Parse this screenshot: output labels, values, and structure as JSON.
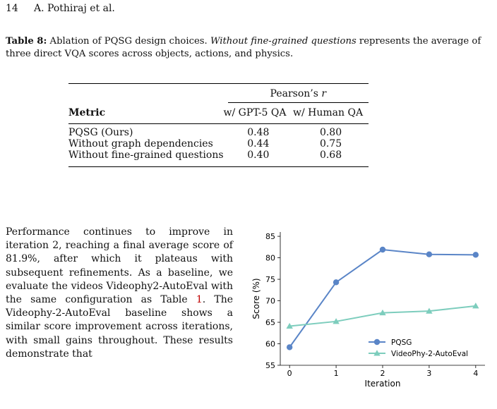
{
  "header": {
    "page_number": "14",
    "authors": "A. Pothiraj et al."
  },
  "caption": {
    "label": "Table 8:",
    "text_a": " Ablation of PQSG design choices. ",
    "italic": "Without fine-grained questions",
    "text_b": " represents the average of three direct VQA scores across objects, actions, and physics."
  },
  "table": {
    "group_header": "Pearson’s r",
    "metric_header": "Metric",
    "col1_header": "w/ GPT-5 QA",
    "col2_header": "w/ Human QA",
    "rows": [
      {
        "metric": "PQSG (Ours)",
        "gpt5": "0.48",
        "human": "0.80"
      },
      {
        "metric": "Without graph dependencies",
        "gpt5": "0.44",
        "human": "0.75"
      },
      {
        "metric": "Without fine-grained questions",
        "gpt5": "0.40",
        "human": "0.68"
      }
    ]
  },
  "paragraph": {
    "text_a": "Performance continues to improve in iteration 2, reaching a final average score of 81.9%, after which it plateaus with subsequent refinements. As a baseline, we evaluate the videos Videophy2-AutoEval with the same configuration as Table ",
    "ref": "1",
    "text_b": ". The Videophy-2-AutoEval baseline shows a similar score improvement across iterations, with small gains throughout. These results demonstrate that"
  },
  "chart_data": {
    "type": "line",
    "xlabel": "Iteration",
    "ylabel": "Score (%)",
    "x": [
      0,
      1,
      2,
      3,
      4
    ],
    "ylim": [
      55,
      86
    ],
    "yticks": [
      55,
      60,
      65,
      70,
      75,
      80,
      85
    ],
    "grid": false,
    "legend_position": "lower-right",
    "series": [
      {
        "name": "PQSG",
        "values": [
          59.2,
          74.3,
          81.9,
          80.8,
          80.7
        ],
        "color": "#5a85c7",
        "marker": "circle"
      },
      {
        "name": "VideoPhy-2-AutoEval",
        "values": [
          64.1,
          65.2,
          67.2,
          67.6,
          68.8
        ],
        "color": "#7dcdbd",
        "marker": "triangle"
      }
    ]
  }
}
